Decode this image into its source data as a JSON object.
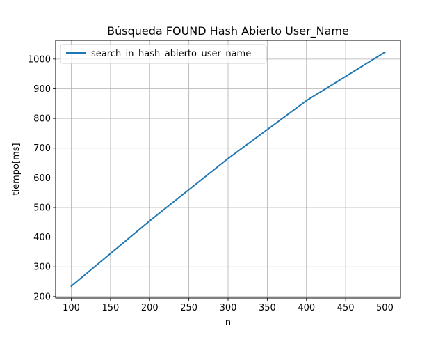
{
  "chart_data": {
    "type": "line",
    "title": "Búsqueda FOUND Hash Abierto User_Name",
    "xlabel": "n",
    "ylabel": "tiempo[ms]",
    "xlim": [
      80,
      520
    ],
    "ylim": [
      195,
      1063
    ],
    "xticks": [
      100,
      150,
      200,
      250,
      300,
      350,
      400,
      450,
      500
    ],
    "yticks": [
      200,
      300,
      400,
      500,
      600,
      700,
      800,
      900,
      1000
    ],
    "grid": true,
    "legend_position": "upper-left",
    "series": [
      {
        "name": "search_in_hash_abierto_user_name",
        "color": "#1f77b4",
        "x": [
          100,
          200,
          300,
          400,
          500
        ],
        "y": [
          235,
          455,
          665,
          860,
          1023
        ]
      }
    ]
  }
}
